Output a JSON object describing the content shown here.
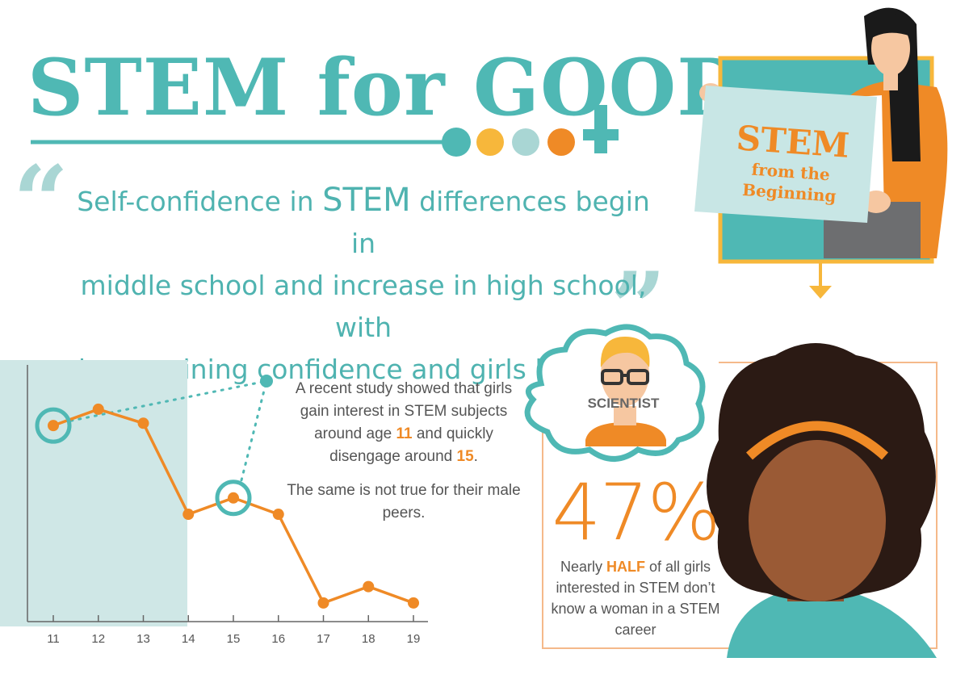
{
  "title": {
    "part1": "STEM for ",
    "part2": "GOOD"
  },
  "quote": {
    "line1_a": "Self-confidence in ",
    "line1_b": "STEM",
    "line1_c": " differences begin in",
    "line2": "middle school and increase in high school, with",
    "line3": "boys gaining confidence and girls losing it."
  },
  "sign": {
    "title": "STEM",
    "subtitle": "from the Beginning"
  },
  "chart_text": {
    "p1_a": "A recent study showed that girls gain interest in STEM subjects around age ",
    "p1_age1": "11",
    "p1_b": " and quickly disengage around ",
    "p1_age2": "15",
    "p1_c": ".",
    "p2": "The same is not true for their male peers."
  },
  "thought": {
    "label": "SCIENTIST"
  },
  "stat": {
    "value": "47%",
    "text_a": "Nearly ",
    "text_em": "HALF",
    "text_b": " of all girls interested in STEM don’t know a woman in a STEM career"
  },
  "colors": {
    "teal": "#4fb8b4",
    "orange": "#ef8a26",
    "light_teal": "#cfe7e6",
    "yellow": "#f7b73b"
  },
  "chart_data": {
    "type": "line",
    "title": "",
    "xlabel": "",
    "ylabel": "",
    "categories": [
      "11",
      "12",
      "13",
      "14",
      "15",
      "16",
      "17",
      "18",
      "19"
    ],
    "series": [
      {
        "values": [
          6.4,
          7.1,
          6.5,
          2.6,
          3.3,
          2.6,
          -1.2,
          -0.5,
          -1.2
        ]
      }
    ],
    "ylim": [
      -2,
      9
    ],
    "highlight_range": [
      "11",
      "14"
    ],
    "highlighted_points": [
      "11",
      "15"
    ]
  }
}
